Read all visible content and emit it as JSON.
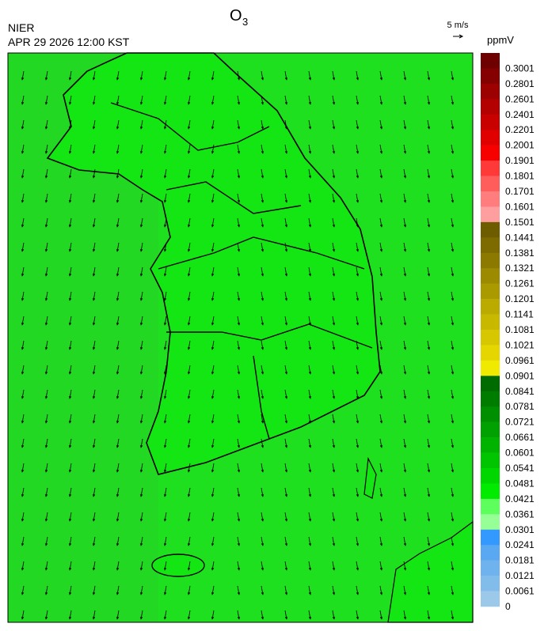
{
  "header": {
    "title": "O",
    "title_sub": "3",
    "agency": "NIER",
    "timestamp": "APR 29 2026 12:00 KST"
  },
  "wind_scale": {
    "label": "5 m/s"
  },
  "colorbar": {
    "unit": "ppmV",
    "labels": [
      "0.3001",
      "0.2801",
      "0.2601",
      "0.2401",
      "0.2201",
      "0.2001",
      "0.1901",
      "0.1801",
      "0.1701",
      "0.1601",
      "0.1501",
      "0.1441",
      "0.1381",
      "0.1321",
      "0.1261",
      "0.1201",
      "0.1141",
      "0.1081",
      "0.1021",
      "0.0961",
      "0.0901",
      "0.0841",
      "0.0781",
      "0.0721",
      "0.0661",
      "0.0601",
      "0.0541",
      "0.0481",
      "0.0421",
      "0.0361",
      "0.0301",
      "0.0241",
      "0.0181",
      "0.0121",
      "0.0061",
      "0"
    ],
    "colors": [
      "#6e0000",
      "#850000",
      "#9c0000",
      "#b30000",
      "#c90000",
      "#e00000",
      "#f70000",
      "#ff3838",
      "#ff5c5c",
      "#ff7d7d",
      "#ff9e9e",
      "#6e5c00",
      "#7d6b00",
      "#8c7a00",
      "#9c8a00",
      "#ab9900",
      "#bbaa00",
      "#c9b800",
      "#d7c700",
      "#e6d600",
      "#f0ea00",
      "#006b00",
      "#007d00",
      "#008f00",
      "#00a100",
      "#00b300",
      "#00c500",
      "#00d700",
      "#00eb00",
      "#5cff5c",
      "#96ff96",
      "#3399ff",
      "#5aa8f2",
      "#6eb2ee",
      "#82bceb",
      "#9cc9ea"
    ]
  }
}
